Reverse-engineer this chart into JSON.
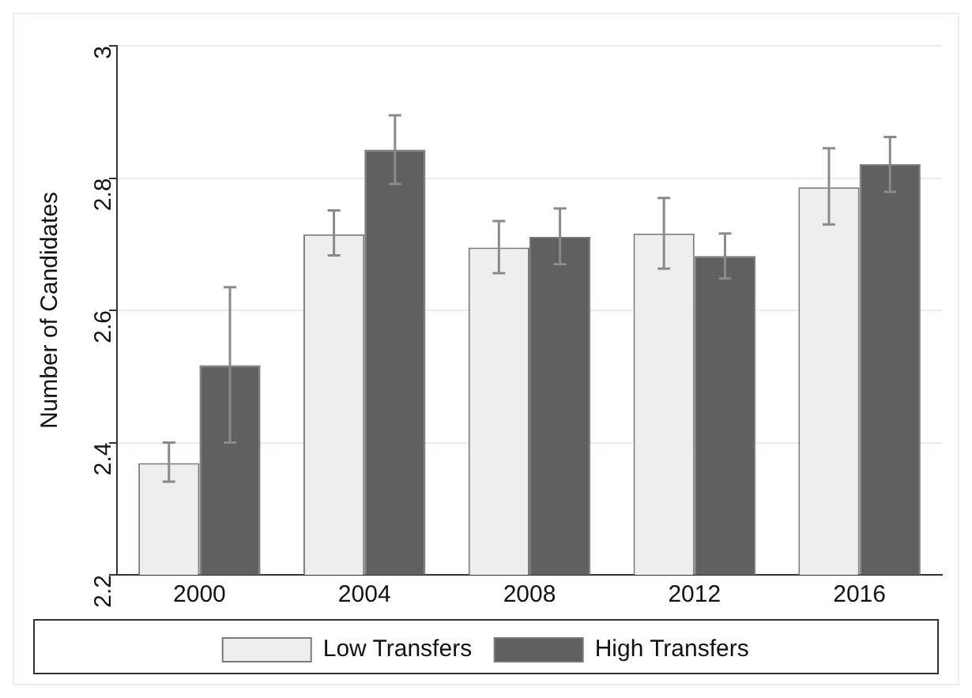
{
  "chart_data": {
    "type": "bar",
    "ylabel": "Number of Candidates",
    "categories": [
      "2000",
      "2004",
      "2008",
      "2012",
      "2016"
    ],
    "series": [
      {
        "name": "Low Transfers",
        "color": "#eeeeee",
        "values": [
          2.369,
          2.715,
          2.695,
          2.716,
          2.786
        ],
        "errors": [
          [
            2.341,
            2.4
          ],
          [
            2.683,
            2.751
          ],
          [
            2.656,
            2.735
          ],
          [
            2.663,
            2.77
          ],
          [
            2.73,
            2.845
          ]
        ]
      },
      {
        "name": "High Transfers",
        "color": "#606060",
        "values": [
          2.517,
          2.843,
          2.711,
          2.682,
          2.821
        ],
        "errors": [
          [
            2.4,
            2.635
          ],
          [
            2.791,
            2.895
          ],
          [
            2.67,
            2.754
          ],
          [
            2.648,
            2.716
          ],
          [
            2.779,
            2.862
          ]
        ]
      }
    ],
    "ylim": [
      2.2,
      3
    ],
    "yticks": [
      2.2,
      2.4,
      2.6,
      2.8,
      3
    ],
    "grid": "y",
    "legend": "bottom"
  }
}
